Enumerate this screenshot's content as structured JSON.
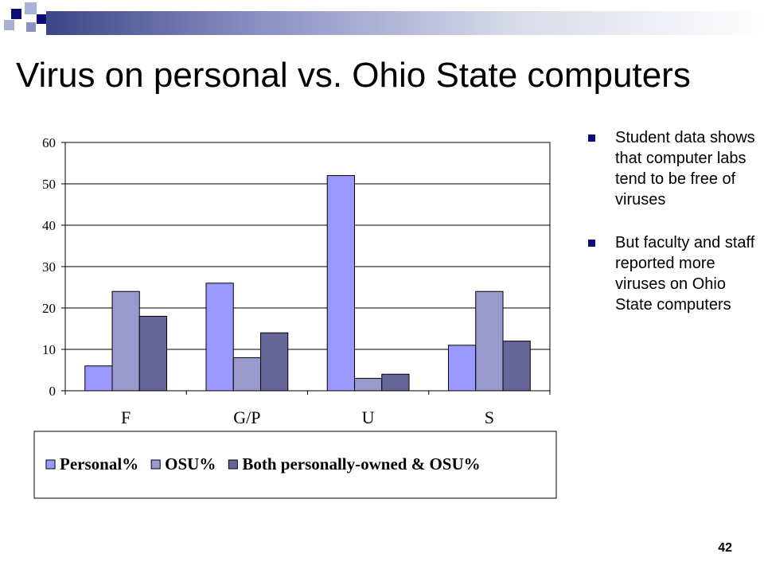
{
  "slide": {
    "title": "Virus on personal vs. Ohio State computers",
    "page_number": "42",
    "accent_color": "#0b0b7a"
  },
  "bullets": [
    "Student data shows that computer labs tend to be free of viruses",
    "But faculty and staff reported more viruses on Ohio State computers"
  ],
  "chart_data": {
    "type": "bar",
    "categories": [
      "F",
      "G/P",
      "U",
      "S"
    ],
    "series": [
      {
        "name": "Personal%",
        "values": [
          6,
          26,
          52,
          11
        ],
        "color": "#9999ff"
      },
      {
        "name": "OSU%",
        "values": [
          24,
          8,
          3,
          24
        ],
        "color": "#9999cc"
      },
      {
        "name": "Both personally-owned & OSU%",
        "values": [
          18,
          14,
          4,
          12
        ],
        "color": "#666699"
      }
    ],
    "y_ticks": [
      "0",
      "10",
      "20",
      "30",
      "40",
      "50",
      "60"
    ],
    "ylim": [
      0,
      60
    ],
    "grid": true,
    "legend_position": "bottom"
  }
}
